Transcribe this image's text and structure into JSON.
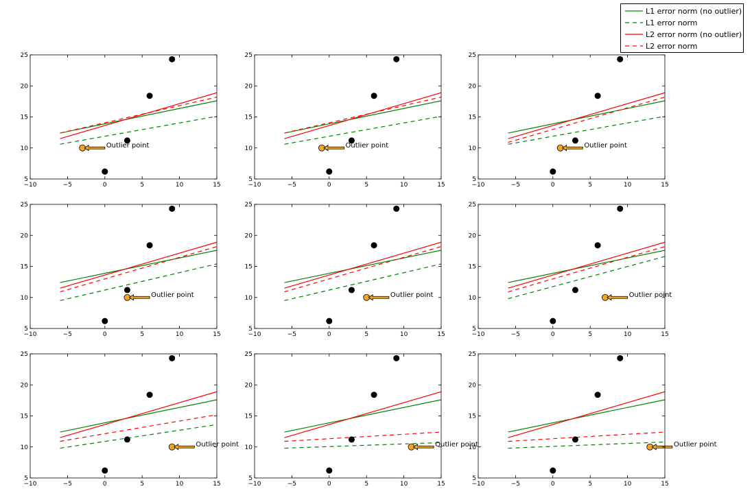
{
  "legend": {
    "items": [
      {
        "label": "L1 error norm (no outlier)",
        "color": "#008000",
        "dash": "solid"
      },
      {
        "label": "L1 error norm",
        "color": "#008000",
        "dash": "dashed"
      },
      {
        "label": "L2 error norm (no outlier)",
        "color": "#ff0000",
        "dash": "solid"
      },
      {
        "label": "L2 error norm",
        "color": "#ff0000",
        "dash": "dashed"
      }
    ]
  },
  "chart_data": [
    {
      "type": "line",
      "xlim": [
        -10,
        15
      ],
      "ylim": [
        5,
        25
      ],
      "xticks": [
        "−10",
        "−5",
        "0",
        "5",
        "10",
        "15"
      ],
      "yticks": [
        "5",
        "10",
        "15",
        "20",
        "25"
      ],
      "points": [
        [
          0,
          6.2
        ],
        [
          3,
          11.2
        ],
        [
          6,
          18.4
        ],
        [
          9,
          24.3
        ]
      ],
      "outlier": [
        -3,
        10
      ],
      "annotation": "Outlier point",
      "series": [
        {
          "name": "L1 error norm (no outlier)",
          "x": [
            -6,
            15
          ],
          "y": [
            12.4,
            17.6
          ]
        },
        {
          "name": "L1 error norm",
          "x": [
            -6,
            15
          ],
          "y": [
            10.6,
            15.1
          ]
        },
        {
          "name": "L2 error norm (no outlier)",
          "x": [
            -6,
            15
          ],
          "y": [
            11.5,
            18.9
          ]
        },
        {
          "name": "L2 error norm",
          "x": [
            -6,
            15
          ],
          "y": [
            12.4,
            18.2
          ]
        }
      ]
    },
    {
      "type": "line",
      "xlim": [
        -10,
        15
      ],
      "ylim": [
        5,
        25
      ],
      "xticks": [
        "−10",
        "−5",
        "0",
        "5",
        "10",
        "15"
      ],
      "yticks": [
        "5",
        "10",
        "15",
        "20",
        "25"
      ],
      "points": [
        [
          0,
          6.2
        ],
        [
          3,
          11.2
        ],
        [
          6,
          18.4
        ],
        [
          9,
          24.3
        ]
      ],
      "outlier": [
        -1,
        10
      ],
      "annotation": "Outlier point",
      "series": [
        {
          "name": "L1 error norm (no outlier)",
          "x": [
            -6,
            15
          ],
          "y": [
            12.4,
            17.6
          ]
        },
        {
          "name": "L1 error norm",
          "x": [
            -6,
            15
          ],
          "y": [
            10.6,
            15.1
          ]
        },
        {
          "name": "L2 error norm (no outlier)",
          "x": [
            -6,
            15
          ],
          "y": [
            11.5,
            18.9
          ]
        },
        {
          "name": "L2 error norm",
          "x": [
            -6,
            15
          ],
          "y": [
            12.4,
            18.2
          ]
        }
      ]
    },
    {
      "type": "line",
      "xlim": [
        -10,
        15
      ],
      "ylim": [
        5,
        25
      ],
      "xticks": [
        "−10",
        "−5",
        "0",
        "5",
        "10",
        "15"
      ],
      "yticks": [
        "5",
        "10",
        "15",
        "20",
        "25"
      ],
      "points": [
        [
          0,
          6.2
        ],
        [
          3,
          11.2
        ],
        [
          6,
          18.4
        ],
        [
          9,
          24.3
        ]
      ],
      "outlier": [
        1,
        10
      ],
      "annotation": "Outlier point",
      "series": [
        {
          "name": "L1 error norm (no outlier)",
          "x": [
            -6,
            15
          ],
          "y": [
            12.4,
            17.6
          ]
        },
        {
          "name": "L1 error norm",
          "x": [
            -6,
            15
          ],
          "y": [
            10.6,
            15.1
          ]
        },
        {
          "name": "L2 error norm (no outlier)",
          "x": [
            -6,
            15
          ],
          "y": [
            11.5,
            18.9
          ]
        },
        {
          "name": "L2 error norm",
          "x": [
            -6,
            15
          ],
          "y": [
            10.9,
            18.2
          ]
        }
      ]
    },
    {
      "type": "line",
      "xlim": [
        -10,
        15
      ],
      "ylim": [
        5,
        25
      ],
      "xticks": [
        "−10",
        "−5",
        "0",
        "5",
        "10",
        "15"
      ],
      "yticks": [
        "5",
        "10",
        "15",
        "20",
        "25"
      ],
      "points": [
        [
          0,
          6.2
        ],
        [
          3,
          11.2
        ],
        [
          6,
          18.4
        ],
        [
          9,
          24.3
        ]
      ],
      "outlier": [
        3,
        10
      ],
      "annotation": "Outlier point",
      "series": [
        {
          "name": "L1 error norm (no outlier)",
          "x": [
            -6,
            15
          ],
          "y": [
            12.4,
            17.6
          ]
        },
        {
          "name": "L1 error norm",
          "x": [
            -6,
            15
          ],
          "y": [
            9.5,
            15.4
          ]
        },
        {
          "name": "L2 error norm (no outlier)",
          "x": [
            -6,
            15
          ],
          "y": [
            11.5,
            18.9
          ]
        },
        {
          "name": "L2 error norm",
          "x": [
            -6,
            15
          ],
          "y": [
            10.9,
            18.2
          ]
        }
      ]
    },
    {
      "type": "line",
      "xlim": [
        -10,
        15
      ],
      "ylim": [
        5,
        25
      ],
      "xticks": [
        "−10",
        "−5",
        "0",
        "5",
        "10",
        "15"
      ],
      "yticks": [
        "5",
        "10",
        "15",
        "20",
        "25"
      ],
      "points": [
        [
          0,
          6.2
        ],
        [
          3,
          11.2
        ],
        [
          6,
          18.4
        ],
        [
          9,
          24.3
        ]
      ],
      "outlier": [
        5,
        10
      ],
      "annotation": "Outlier point",
      "series": [
        {
          "name": "L1 error norm (no outlier)",
          "x": [
            -6,
            15
          ],
          "y": [
            12.4,
            17.6
          ]
        },
        {
          "name": "L1 error norm",
          "x": [
            -6,
            15
          ],
          "y": [
            9.5,
            15.4
          ]
        },
        {
          "name": "L2 error norm (no outlier)",
          "x": [
            -6,
            15
          ],
          "y": [
            11.5,
            18.9
          ]
        },
        {
          "name": "L2 error norm",
          "x": [
            -6,
            15
          ],
          "y": [
            10.9,
            18.2
          ]
        }
      ]
    },
    {
      "type": "line",
      "xlim": [
        -10,
        15
      ],
      "ylim": [
        5,
        25
      ],
      "xticks": [
        "−10",
        "−5",
        "0",
        "5",
        "10",
        "15"
      ],
      "yticks": [
        "5",
        "10",
        "15",
        "20",
        "25"
      ],
      "points": [
        [
          0,
          6.2
        ],
        [
          3,
          11.2
        ],
        [
          6,
          18.4
        ],
        [
          9,
          24.3
        ]
      ],
      "outlier": [
        7,
        10
      ],
      "annotation": "Outlier point",
      "series": [
        {
          "name": "L1 error norm (no outlier)",
          "x": [
            -6,
            15
          ],
          "y": [
            12.4,
            17.6
          ]
        },
        {
          "name": "L1 error norm",
          "x": [
            -6,
            15
          ],
          "y": [
            9.8,
            16.6
          ]
        },
        {
          "name": "L2 error norm (no outlier)",
          "x": [
            -6,
            15
          ],
          "y": [
            11.5,
            18.9
          ]
        },
        {
          "name": "L2 error norm",
          "x": [
            -6,
            15
          ],
          "y": [
            10.9,
            18.2
          ]
        }
      ]
    },
    {
      "type": "line",
      "xlim": [
        -10,
        15
      ],
      "ylim": [
        5,
        25
      ],
      "xticks": [
        "−10",
        "−5",
        "0",
        "5",
        "10",
        "15"
      ],
      "yticks": [
        "5",
        "10",
        "15",
        "20",
        "25"
      ],
      "points": [
        [
          0,
          6.2
        ],
        [
          3,
          11.2
        ],
        [
          6,
          18.4
        ],
        [
          9,
          24.3
        ]
      ],
      "outlier": [
        9,
        10
      ],
      "annotation": "Outlier point",
      "series": [
        {
          "name": "L1 error norm (no outlier)",
          "x": [
            -6,
            15
          ],
          "y": [
            12.4,
            17.6
          ]
        },
        {
          "name": "L1 error norm",
          "x": [
            -6,
            15
          ],
          "y": [
            9.8,
            13.6
          ]
        },
        {
          "name": "L2 error norm (no outlier)",
          "x": [
            -6,
            15
          ],
          "y": [
            11.5,
            18.9
          ]
        },
        {
          "name": "L2 error norm",
          "x": [
            -6,
            15
          ],
          "y": [
            10.9,
            15.2
          ]
        }
      ]
    },
    {
      "type": "line",
      "xlim": [
        -10,
        15
      ],
      "ylim": [
        5,
        25
      ],
      "xticks": [
        "−10",
        "−5",
        "0",
        "5",
        "10",
        "15"
      ],
      "yticks": [
        "5",
        "10",
        "15",
        "20",
        "25"
      ],
      "points": [
        [
          0,
          6.2
        ],
        [
          3,
          11.2
        ],
        [
          6,
          18.4
        ],
        [
          9,
          24.3
        ]
      ],
      "outlier": [
        11,
        10
      ],
      "annotation": "Outlier point",
      "series": [
        {
          "name": "L1 error norm (no outlier)",
          "x": [
            -6,
            15
          ],
          "y": [
            12.4,
            17.6
          ]
        },
        {
          "name": "L1 error norm",
          "x": [
            -6,
            15
          ],
          "y": [
            9.8,
            10.7
          ]
        },
        {
          "name": "L2 error norm (no outlier)",
          "x": [
            -6,
            15
          ],
          "y": [
            11.5,
            18.9
          ]
        },
        {
          "name": "L2 error norm",
          "x": [
            -6,
            15
          ],
          "y": [
            10.9,
            12.4
          ]
        }
      ]
    },
    {
      "type": "line",
      "xlim": [
        -10,
        15
      ],
      "ylim": [
        5,
        25
      ],
      "xticks": [
        "−10",
        "−5",
        "0",
        "5",
        "10",
        "15"
      ],
      "yticks": [
        "5",
        "10",
        "15",
        "20",
        "25"
      ],
      "points": [
        [
          0,
          6.2
        ],
        [
          3,
          11.2
        ],
        [
          6,
          18.4
        ],
        [
          9,
          24.3
        ]
      ],
      "outlier": [
        13,
        10
      ],
      "annotation": "Outlier point",
      "series": [
        {
          "name": "L1 error norm (no outlier)",
          "x": [
            -6,
            15
          ],
          "y": [
            12.4,
            17.6
          ]
        },
        {
          "name": "L1 error norm",
          "x": [
            -6,
            15
          ],
          "y": [
            9.8,
            10.8
          ]
        },
        {
          "name": "L2 error norm (no outlier)",
          "x": [
            -6,
            15
          ],
          "y": [
            11.5,
            18.9
          ]
        },
        {
          "name": "L2 error norm",
          "x": [
            -6,
            15
          ],
          "y": [
            10.9,
            12.4
          ]
        }
      ]
    }
  ]
}
